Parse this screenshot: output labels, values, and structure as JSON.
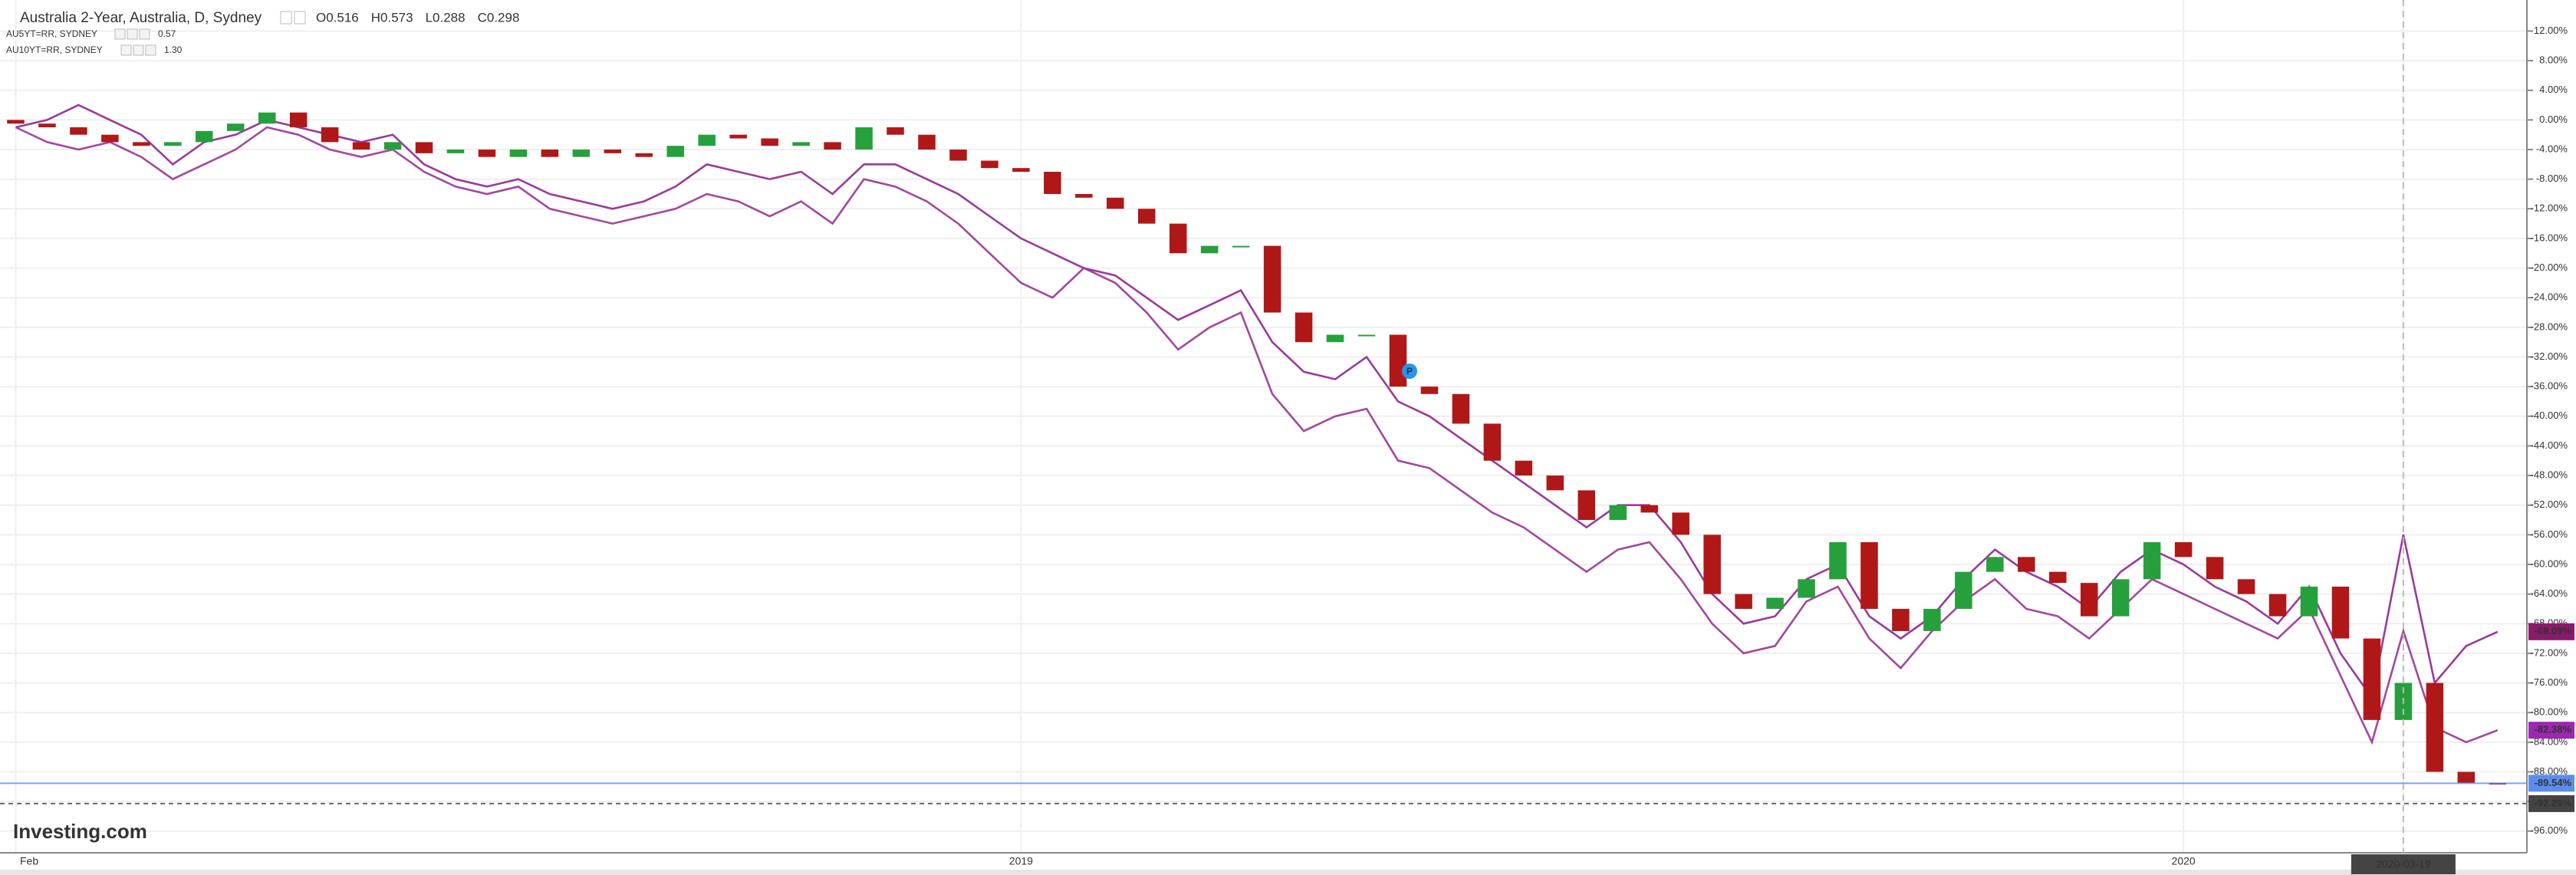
{
  "chart_data": {
    "type": "candlestick",
    "title": "Australia 2-Year, Australia, D, Sydney",
    "ohlc_labels": [
      "O0.516",
      "H0.573",
      "L0.288",
      "C0.298"
    ],
    "watermark": "Investing.com",
    "up_color": "#26a03c",
    "down_color": "#b01818",
    "categories": [
      "Feb",
      null,
      null,
      null,
      null,
      null,
      null,
      null,
      null,
      null,
      null,
      null,
      null,
      null,
      null,
      null,
      null,
      null,
      null,
      null,
      null,
      null,
      null,
      null,
      null,
      null,
      null,
      null,
      null,
      null,
      null,
      null,
      "2019",
      null,
      null,
      null,
      null,
      null,
      null,
      null,
      null,
      null,
      null,
      null,
      null,
      null,
      null,
      null,
      null,
      null,
      null,
      null,
      null,
      null,
      null,
      null,
      null,
      null,
      null,
      null,
      null,
      null,
      null,
      null,
      null,
      null,
      null,
      null,
      null,
      "2020",
      null,
      null,
      null,
      null,
      null,
      null,
      "2020-03-19",
      null,
      null,
      null
    ],
    "open": [
      0,
      -0.5,
      -1,
      -2,
      -3,
      -3.5,
      -3,
      -1.5,
      -0.5,
      1,
      -1,
      -3,
      -4,
      -3,
      -4.5,
      -4,
      -5,
      -4,
      -5,
      -4,
      -4.5,
      -5,
      -3.5,
      -2,
      -2.5,
      -3.5,
      -3,
      -4,
      -1,
      -2,
      -4,
      -5.5,
      -6.5,
      -7,
      -10,
      -10.5,
      -12,
      -14,
      -18,
      -17,
      -17,
      -26,
      -30,
      -29,
      -29,
      -36,
      -37,
      -41,
      -46,
      -48,
      -50,
      -54,
      -52,
      -53,
      -56,
      -64,
      -66,
      -64.5,
      -62,
      -57,
      -66,
      -69,
      -66,
      -61,
      -59,
      -61,
      -62.5,
      -67,
      -62,
      -57,
      -59,
      -62,
      -64,
      -67,
      -63,
      -70,
      -81,
      -76,
      -88,
      -89.5
    ],
    "close": [
      -0.5,
      -1,
      -2,
      -3,
      -3.5,
      -3,
      -1.5,
      -0.5,
      1,
      -1,
      -3,
      -4,
      -3,
      -4.5,
      -4,
      -5,
      -4,
      -5,
      -4,
      -4.5,
      -5,
      -3.5,
      -2,
      -2.5,
      -3.5,
      -3,
      -4,
      -1,
      -2,
      -4,
      -5.5,
      -6.5,
      -7,
      -10,
      -10.5,
      -12,
      -14,
      -18,
      -17,
      -17,
      -26,
      -30,
      -29,
      -29,
      -36,
      -37,
      -41,
      -46,
      -48,
      -50,
      -54,
      -52,
      -53,
      -56,
      -64,
      -66,
      -64.5,
      -62,
      -57,
      -66,
      -69,
      -66,
      -61,
      -59,
      -61,
      -62.5,
      -67,
      -62,
      -57,
      -59,
      -62,
      -64,
      -67,
      -63,
      -70,
      -81,
      -76,
      -88,
      -89.5,
      -89.54
    ],
    "series": [
      {
        "name": "AU5YT=RR, SYDNEY",
        "legend_value": "0.57",
        "color": "#a3479f",
        "values": [
          -1,
          -3,
          -4,
          -3,
          -5,
          -8,
          -6,
          -4,
          -1,
          -2,
          -4,
          -5,
          -4,
          -7,
          -9,
          -10,
          -9,
          -12,
          -13,
          -14,
          -13,
          -12,
          -10,
          -11,
          -13,
          -11,
          -14,
          -8,
          -9,
          -11,
          -14,
          -18,
          -22,
          -24,
          -20,
          -22,
          -26,
          -31,
          -28,
          -26,
          -37,
          -42,
          -40,
          -39,
          -46,
          -47,
          -50,
          -53,
          -55,
          -58,
          -61,
          -58,
          -57,
          -62,
          -68,
          -72,
          -71,
          -65,
          -63,
          -70,
          -74,
          -69,
          -65,
          -62,
          -66,
          -67,
          -70,
          -66,
          -62,
          -64,
          -66,
          -68,
          -70,
          -66,
          -75,
          -84,
          -69,
          -82,
          -84,
          -82.38
        ]
      },
      {
        "name": "AU10YT=RR, SYDNEY",
        "legend_value": "1.30",
        "color": "#9a3a9c",
        "values": [
          -1,
          0,
          2,
          0,
          -2,
          -6,
          -3,
          -2,
          0,
          -1,
          -2,
          -3,
          -2,
          -6,
          -8,
          -9,
          -8,
          -10,
          -11,
          -12,
          -11,
          -9,
          -6,
          -7,
          -8,
          -7,
          -10,
          -6,
          -6,
          -8,
          -10,
          -13,
          -16,
          -18,
          -20,
          -21,
          -24,
          -27,
          -25,
          -23,
          -30,
          -34,
          -35,
          -32,
          -38,
          -40,
          -43,
          -46,
          -49,
          -52,
          -55,
          -52,
          -52,
          -57,
          -64,
          -68,
          -67,
          -62,
          -60,
          -67,
          -70,
          -67,
          -62,
          -58,
          -61,
          -63,
          -66,
          -61,
          -58,
          -60,
          -63,
          -65,
          -68,
          -63,
          -72,
          -78,
          -56,
          -76,
          -71,
          -69.09
        ]
      }
    ],
    "price_labels": [
      {
        "value": -69.09,
        "label": "-69.09%",
        "color": "#8b1a6b",
        "line": "none"
      },
      {
        "value": -82.38,
        "label": "-82.38%",
        "color": "#9c27b0",
        "line": "none"
      },
      {
        "value": -89.54,
        "label": "-89.54%",
        "color": "#5b8def",
        "line": "solid"
      },
      {
        "value": -92.29,
        "label": "-92.29%",
        "color": "#444444",
        "line": "dashed"
      }
    ],
    "ylim": [
      20,
      -100
    ],
    "yticks": [
      {
        "value": 12,
        "label": "12.00%"
      },
      {
        "value": 8,
        "label": "8.00%"
      },
      {
        "value": 4,
        "label": "4.00%"
      },
      {
        "value": 0,
        "label": "0.00%"
      },
      {
        "value": -4,
        "label": "-4.00%"
      },
      {
        "value": -8,
        "label": "-8.00%"
      },
      {
        "value": -12,
        "label": "-12.00%"
      },
      {
        "value": -16,
        "label": "-16.00%"
      },
      {
        "value": -20,
        "label": "-20.00%"
      },
      {
        "value": -24,
        "label": "-24.00%"
      },
      {
        "value": -28,
        "label": "-28.00%"
      },
      {
        "value": -32,
        "label": "-32.00%"
      },
      {
        "value": -36,
        "label": "-36.00%"
      },
      {
        "value": -40,
        "label": "-40.00%"
      },
      {
        "value": -44,
        "label": "-44.00%"
      },
      {
        "value": -48,
        "label": "-48.00%"
      },
      {
        "value": -52,
        "label": "-52.00%"
      },
      {
        "value": -56,
        "label": "-56.00%"
      },
      {
        "value": -60,
        "label": "-60.00%"
      },
      {
        "value": -64,
        "label": "-64.00%"
      },
      {
        "value": -68,
        "label": "-68.00%"
      },
      {
        "value": -72,
        "label": "-72.00%"
      },
      {
        "value": -76,
        "label": "-76.00%"
      },
      {
        "value": -80,
        "label": "-80.00%"
      },
      {
        "value": -84,
        "label": "-84.00%"
      },
      {
        "value": -88,
        "label": "-88.00%"
      },
      {
        "value": -92,
        "label": "-92.00%"
      },
      {
        "value": -96,
        "label": "-96.00%"
      }
    ],
    "grid": true
  }
}
